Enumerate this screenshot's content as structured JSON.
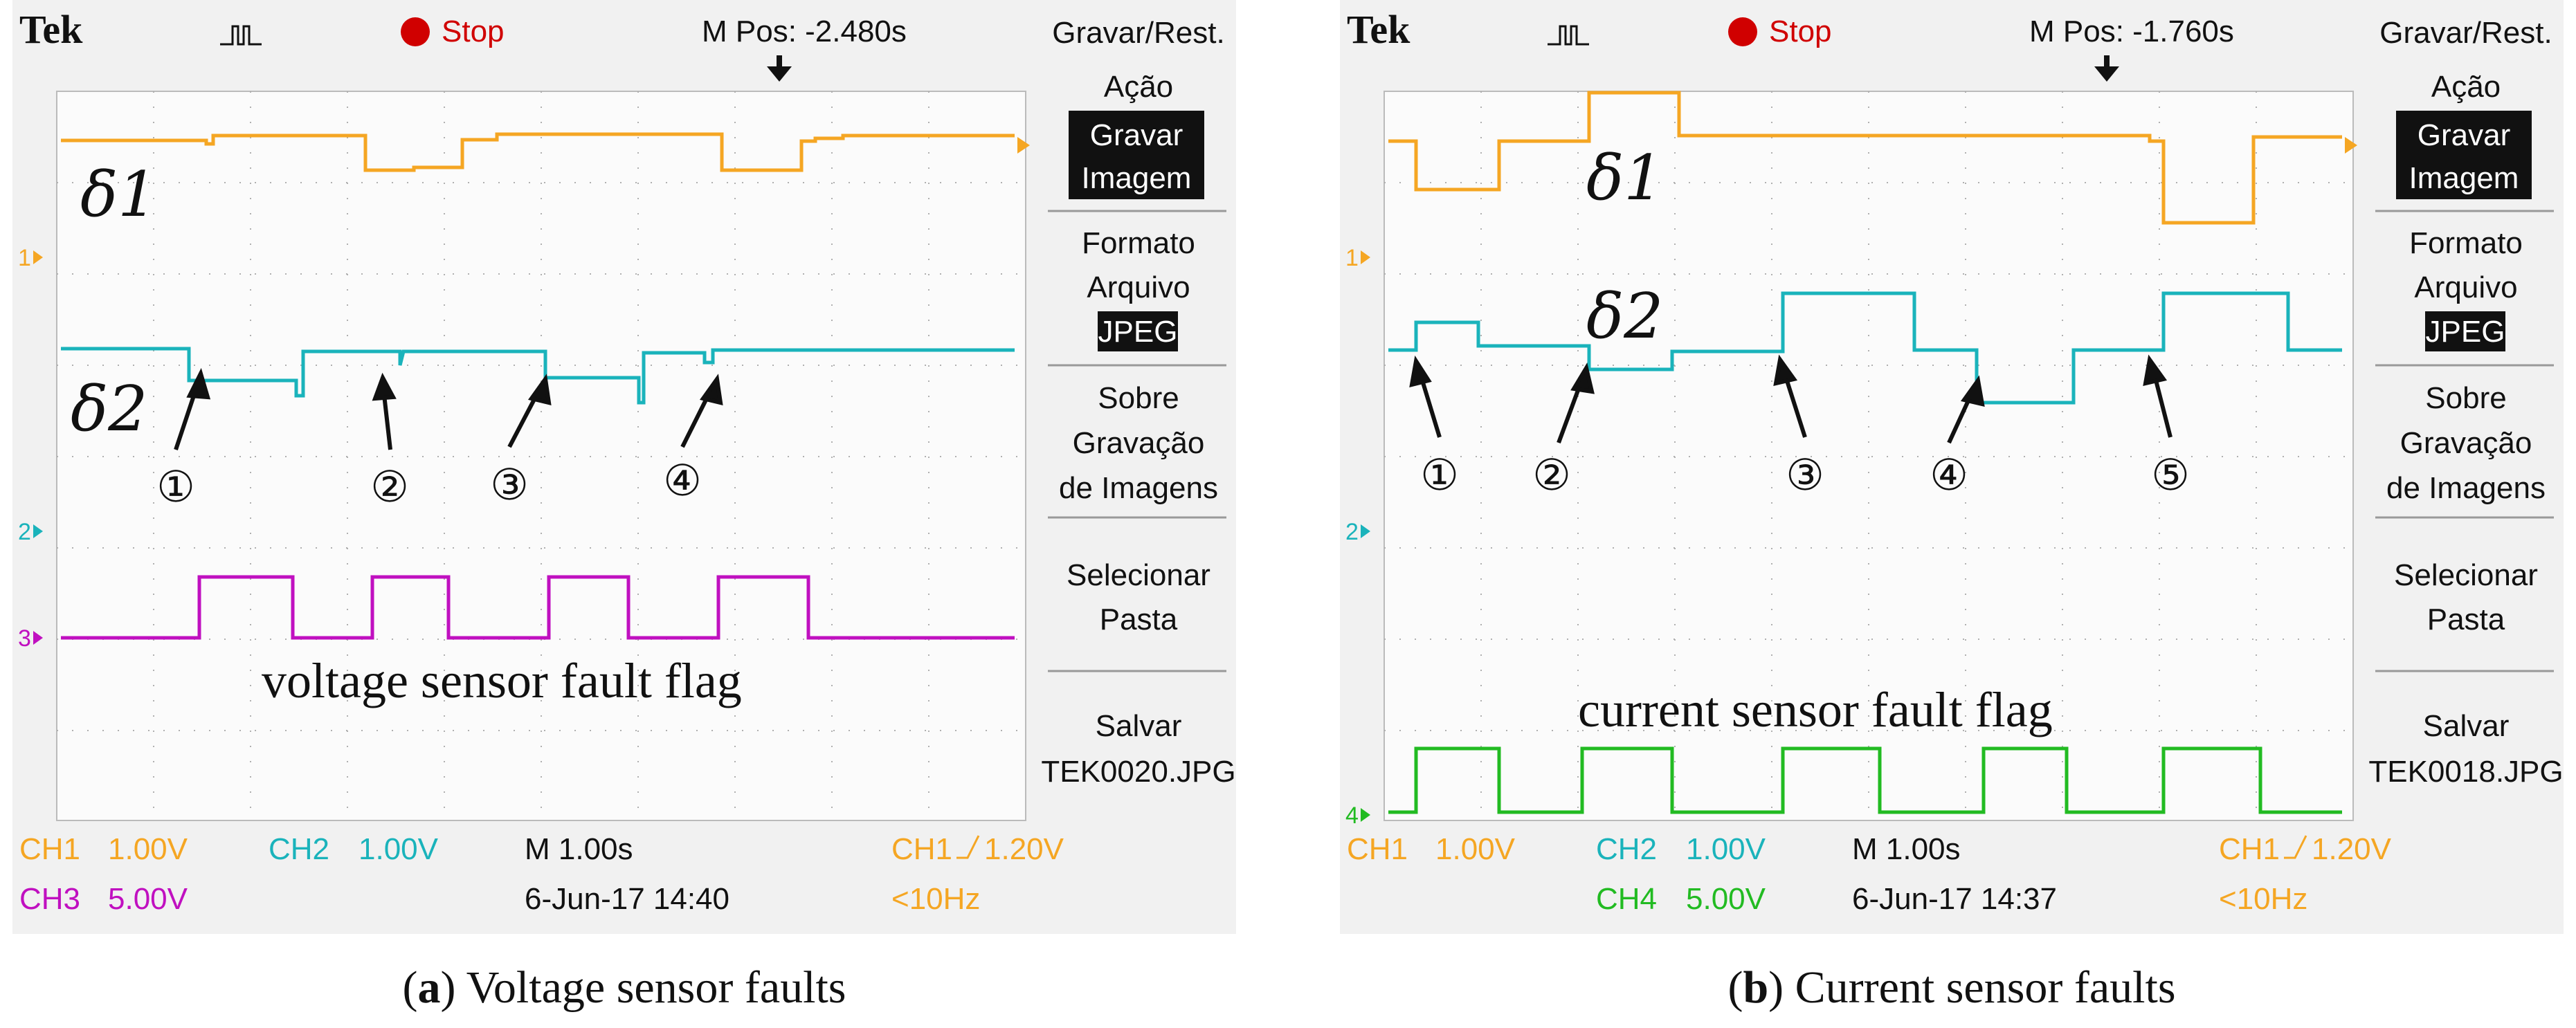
{
  "panels": [
    {
      "id": "a",
      "brand": "Tek",
      "status": "Stop",
      "mpos": "M Pos: -2.480s",
      "caption_label": "a",
      "caption_text": "Voltage sensor faults",
      "menu": {
        "title": "Gravar/Rest.",
        "acao": "Ação",
        "gravar_imagem": [
          "Gravar",
          "Imagem"
        ],
        "formato_arquivo": [
          "Formato",
          "Arquivo"
        ],
        "jpeg": "JPEG",
        "sobre": [
          "Sobre",
          "Gravação",
          "de Imagens"
        ],
        "selecionar": [
          "Selecionar",
          "Pasta"
        ],
        "salvar": [
          "Salvar",
          "TEK0020.JPG"
        ]
      },
      "labels": {
        "delta1": "δ1",
        "delta2": "δ2",
        "flag": "voltage sensor fault flag"
      },
      "markers": [
        "①",
        "②",
        "③",
        "④"
      ],
      "channel_markers": [
        "1",
        "2",
        "3"
      ],
      "status_rows": {
        "ch1": "CH1",
        "ch1_scale": "1.00V",
        "ch2": "CH2",
        "ch2_scale": "1.00V",
        "time": "M 1.00s",
        "trig": "CH1",
        "trig_level": "1.20V",
        "chx": "CH3",
        "chx_scale": "5.00V",
        "date": "6-Jun-17 14:40",
        "freq": "<10Hz"
      },
      "colors": {
        "ch1": "#f5a623",
        "ch2": "#1ab3bb",
        "chx": "#c010c0"
      }
    },
    {
      "id": "b",
      "brand": "Tek",
      "status": "Stop",
      "mpos": "M Pos: -1.760s",
      "caption_label": "b",
      "caption_text": "Current sensor faults",
      "menu": {
        "title": "Gravar/Rest.",
        "acao": "Ação",
        "gravar_imagem": [
          "Gravar",
          "Imagem"
        ],
        "formato_arquivo": [
          "Formato",
          "Arquivo"
        ],
        "jpeg": "JPEG",
        "sobre": [
          "Sobre",
          "Gravação",
          "de Imagens"
        ],
        "selecionar": [
          "Selecionar",
          "Pasta"
        ],
        "salvar": [
          "Salvar",
          "TEK0018.JPG"
        ]
      },
      "labels": {
        "delta1": "δ1",
        "delta2": "δ2",
        "flag": "current sensor fault flag"
      },
      "markers": [
        "①",
        "②",
        "③",
        "④",
        "⑤"
      ],
      "channel_markers": [
        "1",
        "2",
        "4"
      ],
      "status_rows": {
        "ch1": "CH1",
        "ch1_scale": "1.00V",
        "ch2": "CH2",
        "ch2_scale": "1.00V",
        "time": "M 1.00s",
        "trig": "CH1",
        "trig_level": "1.20V",
        "chx": "CH4",
        "chx_scale": "5.00V",
        "date": "6-Jun-17 14:37",
        "freq": "<10Hz"
      },
      "colors": {
        "ch1": "#f5a623",
        "ch2": "#1ab3bb",
        "chx": "#22bb22"
      }
    }
  ]
}
